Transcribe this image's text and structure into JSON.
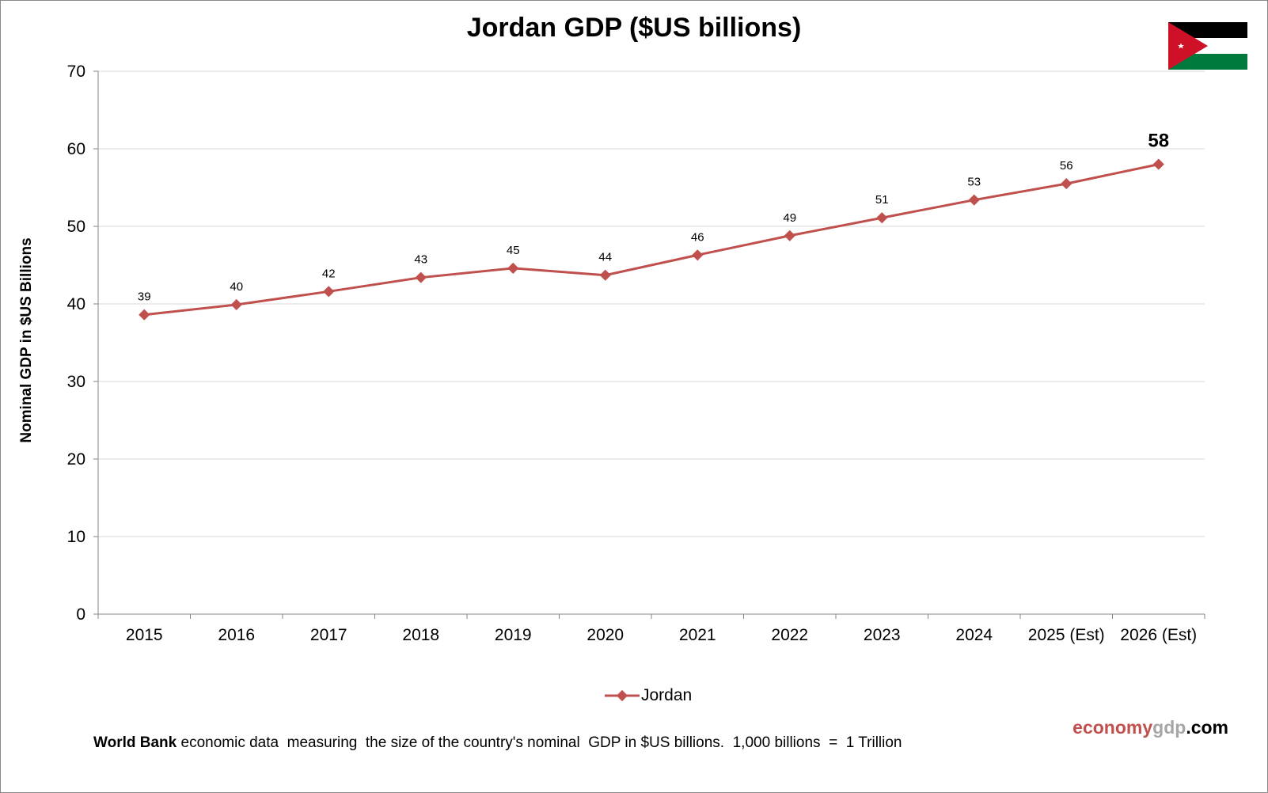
{
  "chart_data": {
    "type": "line",
    "title": "Jordan GDP ($US billions)",
    "xlabel": "",
    "ylabel": "Nominal GDP in $US Billions",
    "ylim": [
      0,
      70
    ],
    "yticks": [
      0,
      10,
      20,
      30,
      40,
      50,
      60,
      70
    ],
    "categories": [
      "2015",
      "2016",
      "2017",
      "2018",
      "2019",
      "2020",
      "2021",
      "2022",
      "2023",
      "2024",
      "2025 (Est)",
      "2026 (Est)"
    ],
    "series": [
      {
        "name": "Jordan",
        "color": "#c0504d",
        "values": [
          38.6,
          39.9,
          41.6,
          43.4,
          44.6,
          43.7,
          46.3,
          48.8,
          51.1,
          53.4,
          55.5,
          58.0
        ],
        "data_labels": [
          "39",
          "40",
          "42",
          "43",
          "45",
          "44",
          "46",
          "49",
          "51",
          "53",
          "56",
          "58"
        ]
      }
    ],
    "grid": true,
    "legend_position": "bottom-center"
  },
  "footnote": {
    "bold": "World Bank",
    "text": " economic data  measuring  the size of the country's nominal  GDP in $US billions.  1,000 billions  =  1 Trillion"
  },
  "brand": {
    "part1": "economy",
    "part2": "gdp",
    "part3": ".com"
  },
  "flag": {
    "icon": "jordan-flag-icon",
    "colors": {
      "black": "#000000",
      "white": "#ffffff",
      "green": "#007a3d",
      "red": "#ce1126"
    }
  }
}
